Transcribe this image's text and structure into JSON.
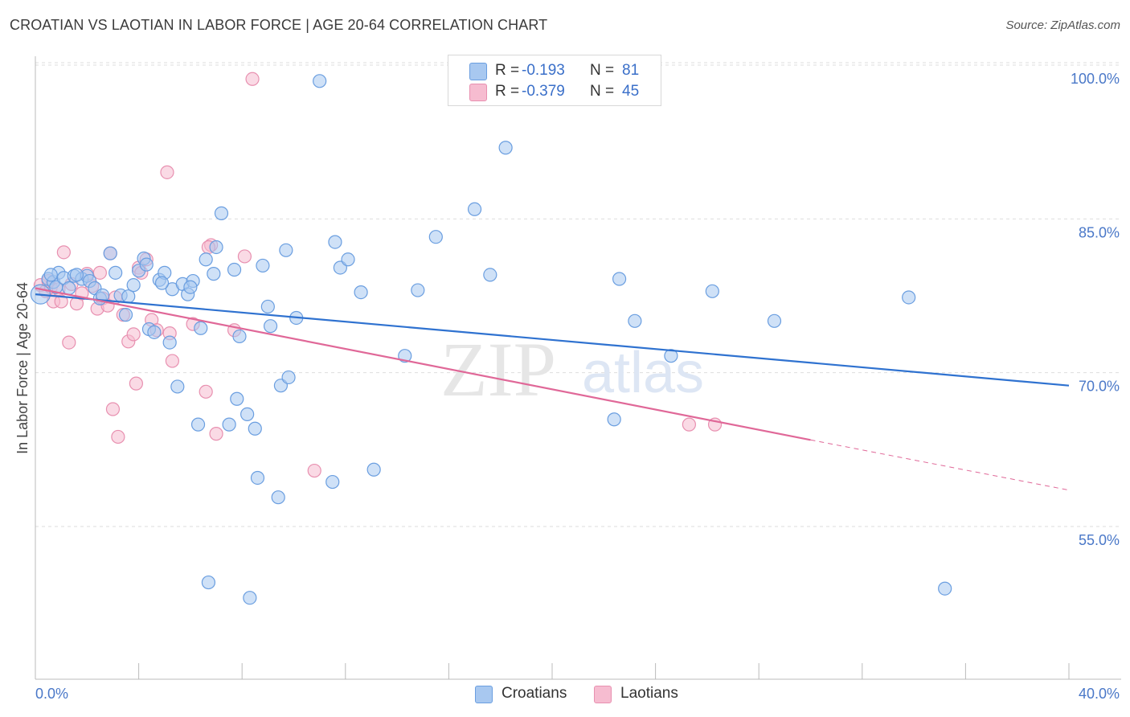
{
  "title": "CROATIAN VS LAOTIAN IN LABOR FORCE | AGE 20-64 CORRELATION CHART",
  "source": "Source: ZipAtlas.com",
  "watermark": {
    "zip": "ZIP",
    "atlas": "atlas"
  },
  "colors": {
    "croatians_fill": "#a8c8f0",
    "croatians_stroke": "#6a9ee0",
    "croatians_line": "#2f72d0",
    "laotians_fill": "#f6bcd0",
    "laotians_stroke": "#e890b0",
    "laotians_line": "#e06898",
    "grid": "#dddddd",
    "tick_text": "#4a78c8"
  },
  "legend": {
    "rows": [
      {
        "r_label": "R =",
        "r_value": "-0.193",
        "n_label": "N =",
        "n_value": "81"
      },
      {
        "r_label": "R =",
        "r_value": "-0.379",
        "n_label": "N =",
        "n_value": "45"
      }
    ]
  },
  "bottom_legend": {
    "croatians": "Croatians",
    "laotians": "Laotians"
  },
  "chart_data": {
    "type": "scatter",
    "title": "CROATIAN VS LAOTIAN IN LABOR FORCE | AGE 20-64 CORRELATION CHART",
    "xlabel": "",
    "ylabel": "In Labor Force | Age 20-64",
    "xlim": [
      0,
      40
    ],
    "ylim": [
      40,
      101.5
    ],
    "x_tick_labels": [
      "0.0%",
      "40.0%"
    ],
    "y_ticks": [
      55,
      70,
      85,
      100
    ],
    "y_tick_labels": [
      "55.0%",
      "70.0%",
      "85.0%",
      "100.0%"
    ],
    "grid": true,
    "legend_position": "top-center",
    "series": [
      {
        "name": "Croatians",
        "r": -0.193,
        "n": 81,
        "trend": {
          "x": [
            0,
            40
          ],
          "y": [
            78.9,
            70.0
          ]
        },
        "points": [
          [
            0.2,
            78.9
          ],
          [
            0.5,
            80.4
          ],
          [
            0.7,
            80.1
          ],
          [
            0.9,
            81.0
          ],
          [
            0.6,
            80.8
          ],
          [
            0.8,
            79.6
          ],
          [
            1.1,
            80.5
          ],
          [
            1.3,
            79.5
          ],
          [
            1.5,
            80.7
          ],
          [
            1.8,
            80.4
          ],
          [
            2.0,
            80.7
          ],
          [
            2.1,
            80.2
          ],
          [
            2.3,
            79.5
          ],
          [
            2.5,
            78.5
          ],
          [
            2.9,
            82.9
          ],
          [
            3.1,
            81.0
          ],
          [
            3.3,
            78.8
          ],
          [
            3.5,
            76.9
          ],
          [
            3.6,
            78.7
          ],
          [
            3.8,
            79.8
          ],
          [
            4.0,
            81.2
          ],
          [
            4.2,
            82.4
          ],
          [
            4.3,
            81.8
          ],
          [
            4.4,
            75.5
          ],
          [
            4.6,
            75.2
          ],
          [
            4.8,
            80.3
          ],
          [
            5.0,
            81.0
          ],
          [
            5.2,
            74.2
          ],
          [
            5.3,
            79.4
          ],
          [
            5.5,
            69.9
          ],
          [
            5.7,
            79.9
          ],
          [
            5.9,
            78.9
          ],
          [
            6.1,
            80.2
          ],
          [
            6.3,
            66.2
          ],
          [
            6.4,
            75.6
          ],
          [
            6.6,
            82.3
          ],
          [
            6.9,
            80.9
          ],
          [
            7.0,
            83.5
          ],
          [
            7.2,
            86.8
          ],
          [
            7.5,
            66.2
          ],
          [
            7.7,
            81.3
          ],
          [
            7.8,
            68.7
          ],
          [
            7.9,
            74.8
          ],
          [
            8.2,
            67.2
          ],
          [
            8.5,
            65.8
          ],
          [
            8.6,
            61.0
          ],
          [
            8.8,
            81.7
          ],
          [
            9.0,
            77.7
          ],
          [
            9.1,
            75.8
          ],
          [
            9.4,
            59.1
          ],
          [
            9.5,
            70.0
          ],
          [
            9.7,
            83.2
          ],
          [
            9.8,
            70.8
          ],
          [
            10.1,
            76.6
          ],
          [
            11.0,
            99.7
          ],
          [
            11.5,
            60.6
          ],
          [
            11.6,
            84.0
          ],
          [
            11.8,
            81.5
          ],
          [
            12.1,
            82.3
          ],
          [
            12.6,
            79.1
          ],
          [
            13.1,
            61.8
          ],
          [
            14.3,
            72.9
          ],
          [
            14.8,
            79.3
          ],
          [
            15.5,
            84.5
          ],
          [
            17.0,
            87.2
          ],
          [
            17.6,
            80.8
          ],
          [
            18.2,
            93.2
          ],
          [
            22.4,
            66.7
          ],
          [
            23.2,
            76.3
          ],
          [
            22.6,
            80.4
          ],
          [
            24.6,
            72.9
          ],
          [
            26.2,
            79.2
          ],
          [
            28.6,
            76.3
          ],
          [
            33.8,
            78.6
          ],
          [
            35.2,
            50.2
          ],
          [
            6.7,
            50.8
          ],
          [
            8.3,
            49.3
          ],
          [
            1.6,
            80.8
          ],
          [
            2.6,
            78.8
          ],
          [
            4.9,
            80.0
          ],
          [
            6.0,
            79.6
          ]
        ]
      },
      {
        "name": "Laotians",
        "r": -0.379,
        "n": 45,
        "trend": {
          "x": [
            0,
            30
          ],
          "y": [
            79.5,
            64.7
          ]
        },
        "trend_dashed": {
          "x": [
            30,
            40
          ],
          "y": [
            64.7,
            59.8
          ]
        },
        "points": [
          [
            0.2,
            79.8
          ],
          [
            0.4,
            79.2
          ],
          [
            0.6,
            79.6
          ],
          [
            0.7,
            78.2
          ],
          [
            0.9,
            79.4
          ],
          [
            1.1,
            83.0
          ],
          [
            1.3,
            74.2
          ],
          [
            1.4,
            79.9
          ],
          [
            1.6,
            78.0
          ],
          [
            1.8,
            79.0
          ],
          [
            2.0,
            80.9
          ],
          [
            2.2,
            79.7
          ],
          [
            2.4,
            77.5
          ],
          [
            2.6,
            78.5
          ],
          [
            2.8,
            77.8
          ],
          [
            2.9,
            82.9
          ],
          [
            3.0,
            67.7
          ],
          [
            3.1,
            78.6
          ],
          [
            3.2,
            65.0
          ],
          [
            3.4,
            76.9
          ],
          [
            3.6,
            74.3
          ],
          [
            3.8,
            75.0
          ],
          [
            3.9,
            70.2
          ],
          [
            4.0,
            81.5
          ],
          [
            4.3,
            82.3
          ],
          [
            4.5,
            76.4
          ],
          [
            4.7,
            75.4
          ],
          [
            5.1,
            90.8
          ],
          [
            5.2,
            75.1
          ],
          [
            5.3,
            72.4
          ],
          [
            6.1,
            76.0
          ],
          [
            6.6,
            69.4
          ],
          [
            6.8,
            83.7
          ],
          [
            7.0,
            65.3
          ],
          [
            7.7,
            75.4
          ],
          [
            8.1,
            82.6
          ],
          [
            8.4,
            99.9
          ],
          [
            10.8,
            61.7
          ],
          [
            25.3,
            66.2
          ],
          [
            26.3,
            66.2
          ],
          [
            1.0,
            78.2
          ],
          [
            2.5,
            81.0
          ],
          [
            0.5,
            80.2
          ],
          [
            4.1,
            81.0
          ],
          [
            6.7,
            83.5
          ]
        ]
      }
    ]
  }
}
